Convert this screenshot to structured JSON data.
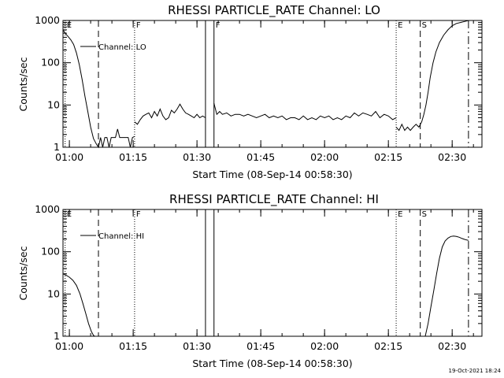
{
  "chart_data": [
    {
      "type": "line",
      "title": "RHESSI PARTICLE_RATE Channel: LO",
      "xlabel": "Start Time (08-Sep-14 00:58:30)",
      "ylabel": "Counts/sec",
      "y_scale": "log",
      "ylim": [
        1,
        1000
      ],
      "xlim": [
        "00:58:30",
        "02:37:00"
      ],
      "x_ticks": [
        "01:00",
        "01:15",
        "01:30",
        "01:45",
        "02:00",
        "02:15",
        "02:30"
      ],
      "y_ticks": [
        "1",
        "10",
        "100",
        "1000"
      ],
      "legend": {
        "position": "top-left",
        "entries": [
          "Channel: LO"
        ]
      },
      "markers": [
        {
          "label": "E",
          "time": "00:59:00",
          "style": "dotted"
        },
        {
          "label": "",
          "time": "01:06:50",
          "style": "dashed"
        },
        {
          "label": "F",
          "time": "01:15:20",
          "style": "dotted"
        },
        {
          "label": "",
          "time": "01:32:00",
          "style": "solid"
        },
        {
          "label": "F",
          "time": "01:34:00",
          "style": "solid"
        },
        {
          "label": "E",
          "time": "02:16:50",
          "style": "dotted"
        },
        {
          "label": "S",
          "time": "02:22:30",
          "style": "dashed"
        },
        {
          "label": "",
          "time": "02:33:50",
          "style": "dashdot"
        }
      ],
      "series": [
        {
          "name": "Channel: LO",
          "segments": [
            {
              "x": [
                "00:58:30",
                "00:59:00",
                "00:59:40",
                "01:00:20",
                "01:01:00",
                "01:01:40",
                "01:02:20",
                "01:03:00",
                "01:03:40",
                "01:04:20",
                "01:05:00",
                "01:05:40",
                "01:06:20",
                "01:06:50",
                "01:07:20",
                "01:07:50",
                "01:08:20",
                "01:08:50",
                "01:09:20",
                "01:09:50",
                "01:10:20",
                "01:10:50",
                "01:11:20",
                "01:11:50",
                "01:12:20",
                "01:12:50",
                "01:13:20",
                "01:13:50",
                "01:14:20",
                "01:14:50",
                "01:15:20"
              ],
              "y": [
                600,
                500,
                420,
                350,
                270,
                170,
                90,
                40,
                16,
                7,
                3,
                1.6,
                1.2,
                1,
                1.7,
                1,
                1.7,
                1.7,
                1,
                1.7,
                1.7,
                1.7,
                2.7,
                1.7,
                1.7,
                1.7,
                1.7,
                1.7,
                1,
                1.7,
                1.8
              ]
            },
            {
              "x": [
                "01:15:20",
                "01:16:00",
                "01:16:40",
                "01:17:20",
                "01:18:00",
                "01:18:40",
                "01:19:20",
                "01:20:00",
                "01:20:40",
                "01:21:20",
                "01:22:00",
                "01:22:40",
                "01:23:20",
                "01:24:00",
                "01:24:40",
                "01:25:20",
                "01:26:00",
                "01:26:40",
                "01:27:20",
                "01:28:00",
                "01:28:40",
                "01:29:20",
                "01:30:00",
                "01:30:40",
                "01:31:20",
                "01:32:00"
              ],
              "y": [
                4,
                3.5,
                4.5,
                5.5,
                6,
                6.5,
                5,
                7,
                5.5,
                8,
                5.5,
                4.5,
                5,
                7.5,
                6.5,
                8,
                10.5,
                8,
                6.5,
                6,
                5.5,
                5,
                6,
                5,
                5.5,
                5
              ]
            },
            {
              "x": [
                "01:34:00",
                "01:34:40",
                "01:35:20",
                "01:36:00",
                "01:37:00",
                "01:38:00",
                "01:39:00",
                "01:40:00",
                "01:41:00",
                "01:42:00",
                "01:43:00",
                "01:44:00",
                "01:45:00",
                "01:46:00",
                "01:47:00",
                "01:48:00",
                "01:49:00",
                "01:50:00",
                "01:51:00",
                "01:52:00",
                "01:53:00",
                "01:54:00",
                "01:55:00",
                "01:56:00",
                "01:57:00",
                "01:58:00",
                "01:59:00",
                "02:00:00",
                "02:01:00",
                "02:02:00",
                "02:03:00",
                "02:04:00",
                "02:05:00",
                "02:06:00",
                "02:07:00",
                "02:08:00",
                "02:09:00",
                "02:10:00",
                "02:11:00",
                "02:12:00",
                "02:13:00",
                "02:14:00",
                "02:15:00",
                "02:16:00",
                "02:16:50"
              ],
              "y": [
                11,
                6,
                7,
                6,
                6.5,
                5.5,
                6,
                6,
                5.5,
                6,
                5.5,
                5,
                5.5,
                6,
                5,
                5.5,
                5,
                5.5,
                4.5,
                5,
                5,
                4.5,
                5.5,
                4.5,
                5,
                4.5,
                5.5,
                5,
                5.5,
                4.5,
                5,
                4.5,
                5.5,
                5,
                6.5,
                5.5,
                6.5,
                6,
                5.5,
                7,
                5,
                6,
                5.5,
                4.5,
                5
              ]
            },
            {
              "x": [
                "02:16:50",
                "02:17:30",
                "02:18:10",
                "02:18:50",
                "02:19:30",
                "02:20:10",
                "02:20:50",
                "02:21:30",
                "02:22:10",
                "02:22:50",
                "02:23:20",
                "02:23:50",
                "02:24:20",
                "02:24:50",
                "02:25:30",
                "02:26:10",
                "02:27:00",
                "02:28:00",
                "02:29:00",
                "02:30:00",
                "02:31:00",
                "02:32:00",
                "02:33:00",
                "02:33:50"
              ],
              "y": [
                3,
                2.5,
                3.5,
                2.5,
                3,
                2.5,
                3,
                3.5,
                3,
                4,
                6,
                10,
                20,
                45,
                100,
                180,
                300,
                450,
                600,
                750,
                850,
                900,
                950,
                1000
              ]
            }
          ]
        }
      ]
    },
    {
      "type": "line",
      "title": "RHESSI PARTICLE_RATE Channel: HI",
      "xlabel": "Start Time (08-Sep-14 00:58:30)",
      "ylabel": "Counts/sec",
      "y_scale": "log",
      "ylim": [
        1,
        1000
      ],
      "xlim": [
        "00:58:30",
        "02:37:00"
      ],
      "x_ticks": [
        "01:00",
        "01:15",
        "01:30",
        "01:45",
        "02:00",
        "02:15",
        "02:30"
      ],
      "y_ticks": [
        "1",
        "10",
        "100",
        "1000"
      ],
      "legend": {
        "position": "top-left",
        "entries": [
          "Channel: HI"
        ]
      },
      "markers": [
        {
          "label": "E",
          "time": "00:59:00",
          "style": "dotted"
        },
        {
          "label": "",
          "time": "01:06:50",
          "style": "dashed"
        },
        {
          "label": "F",
          "time": "01:15:20",
          "style": "dotted"
        },
        {
          "label": "",
          "time": "01:32:00",
          "style": "solid"
        },
        {
          "label": "",
          "time": "01:34:00",
          "style": "solid"
        },
        {
          "label": "E",
          "time": "02:16:50",
          "style": "dotted"
        },
        {
          "label": "S",
          "time": "02:22:30",
          "style": "dashed"
        },
        {
          "label": "",
          "time": "02:33:50",
          "style": "dashdot"
        }
      ],
      "series": [
        {
          "name": "Channel: HI",
          "segments": [
            {
              "x": [
                "00:58:30",
                "00:59:10",
                "01:00:00",
                "01:00:50",
                "01:01:40",
                "01:02:30",
                "01:03:10",
                "01:03:50",
                "01:04:30",
                "01:05:10",
                "01:05:40",
                "01:06:00"
              ],
              "y": [
                30,
                28,
                25,
                21,
                16,
                10,
                6,
                3.5,
                2,
                1.3,
                1.05,
                1
              ]
            },
            {
              "x": [
                "02:23:40",
                "02:24:20",
                "02:25:00",
                "02:25:40",
                "02:26:20",
                "02:27:00",
                "02:27:40",
                "02:28:20",
                "02:29:00",
                "02:29:40",
                "02:30:20",
                "02:31:00",
                "02:31:40",
                "02:32:20",
                "02:33:00",
                "02:33:50"
              ],
              "y": [
                1,
                2,
                5,
                12,
                30,
                70,
                130,
                180,
                210,
                230,
                235,
                230,
                220,
                205,
                195,
                185
              ]
            }
          ]
        }
      ]
    }
  ],
  "footer": {
    "timestamp": "19-Oct-2021 18:24"
  }
}
